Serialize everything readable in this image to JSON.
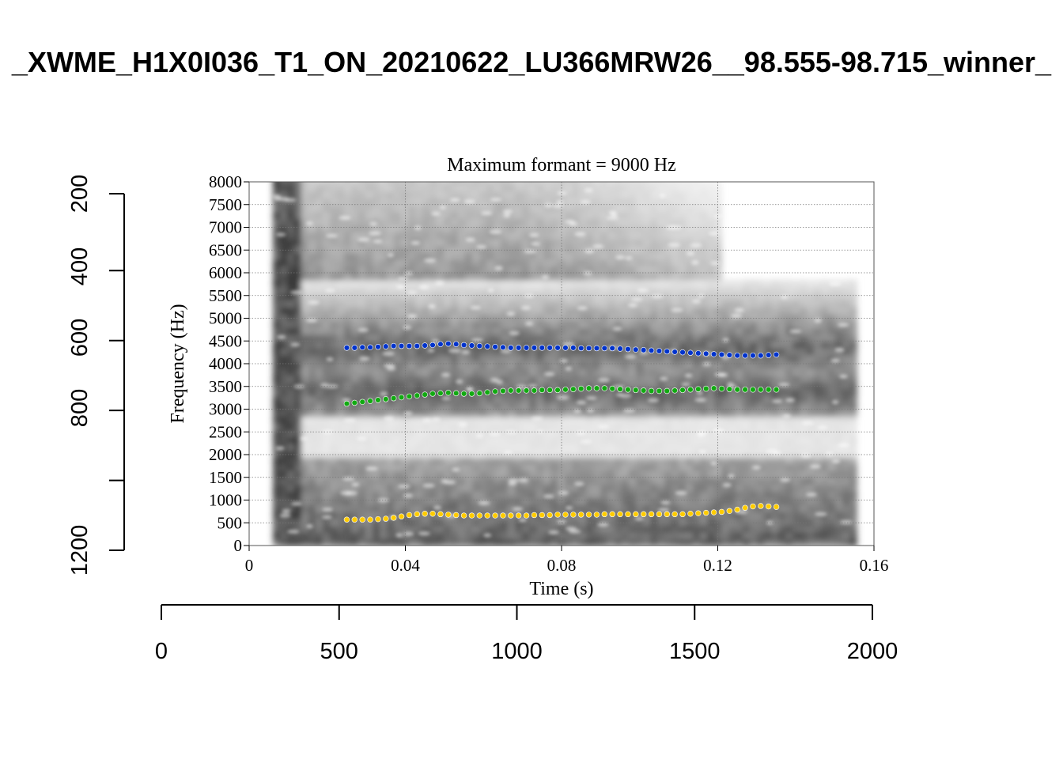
{
  "chart_data": {
    "type": "scatter",
    "title": "_XWME_H1X0I036_T1_ON_20210622_LU366MRW26__98.555-98.715_winner_",
    "outer_axes": {
      "x": {
        "ticks": [
          "0",
          "500",
          "1000",
          "1500",
          "2000"
        ],
        "range": [
          0,
          2000
        ]
      },
      "y": {
        "ticks": [
          "200",
          "400",
          "600",
          "800",
          "1200"
        ],
        "range": [
          180,
          1200
        ]
      }
    },
    "inset": {
      "type": "scatter",
      "title": "Maximum formant  =  9000 Hz",
      "xlabel": "Time (s)",
      "ylabel": "Frequency (Hz)",
      "xlim": [
        0,
        0.16
      ],
      "ylim": [
        0,
        8000
      ],
      "xticks": [
        "0",
        "0.04",
        "0.08",
        "0.12",
        "0.16"
      ],
      "yticks": [
        "0",
        "500",
        "1000",
        "1500",
        "2000",
        "2500",
        "3000",
        "3500",
        "4000",
        "4500",
        "5000",
        "5500",
        "6000",
        "6500",
        "7000",
        "7500",
        "8000"
      ],
      "grid": true,
      "background": "spectrogram (grayscale)",
      "x": [
        0.025,
        0.027,
        0.029,
        0.031,
        0.033,
        0.035,
        0.037,
        0.039,
        0.041,
        0.043,
        0.045,
        0.047,
        0.049,
        0.051,
        0.053,
        0.055,
        0.057,
        0.059,
        0.061,
        0.063,
        0.065,
        0.067,
        0.069,
        0.071,
        0.073,
        0.075,
        0.077,
        0.079,
        0.081,
        0.083,
        0.085,
        0.087,
        0.089,
        0.091,
        0.093,
        0.095,
        0.097,
        0.099,
        0.101,
        0.103,
        0.105,
        0.107,
        0.109,
        0.111,
        0.113,
        0.115,
        0.117,
        0.119,
        0.121,
        0.123,
        0.125,
        0.127,
        0.129,
        0.131,
        0.133,
        0.135
      ],
      "series": [
        {
          "color": "#0033cc",
          "values": [
            4350,
            4350,
            4360,
            4360,
            4370,
            4380,
            4390,
            4390,
            4390,
            4390,
            4400,
            4410,
            4430,
            4440,
            4430,
            4410,
            4400,
            4390,
            4380,
            4370,
            4360,
            4350,
            4350,
            4350,
            4350,
            4350,
            4350,
            4350,
            4350,
            4350,
            4340,
            4340,
            4340,
            4340,
            4340,
            4330,
            4320,
            4310,
            4300,
            4290,
            4280,
            4270,
            4260,
            4250,
            4240,
            4230,
            4220,
            4210,
            4200,
            4190,
            4180,
            4180,
            4180,
            4180,
            4190,
            4200
          ]
        },
        {
          "color": "#11aa11",
          "values": [
            3120,
            3140,
            3160,
            3180,
            3200,
            3220,
            3240,
            3260,
            3280,
            3300,
            3320,
            3340,
            3350,
            3360,
            3350,
            3340,
            3340,
            3350,
            3370,
            3390,
            3400,
            3410,
            3410,
            3410,
            3410,
            3420,
            3420,
            3420,
            3430,
            3440,
            3450,
            3460,
            3460,
            3460,
            3450,
            3440,
            3430,
            3420,
            3410,
            3400,
            3400,
            3400,
            3410,
            3420,
            3430,
            3440,
            3450,
            3460,
            3450,
            3440,
            3430,
            3430,
            3430,
            3430,
            3430,
            3430
          ]
        },
        {
          "color": "#ffcc00",
          "values": [
            570,
            570,
            570,
            570,
            580,
            590,
            610,
            640,
            670,
            690,
            700,
            700,
            690,
            680,
            670,
            660,
            660,
            660,
            660,
            660,
            660,
            660,
            660,
            660,
            670,
            670,
            670,
            680,
            680,
            680,
            680,
            680,
            680,
            690,
            690,
            690,
            690,
            690,
            690,
            690,
            690,
            690,
            690,
            690,
            700,
            710,
            720,
            730,
            740,
            760,
            790,
            830,
            860,
            870,
            860,
            850
          ]
        }
      ]
    }
  }
}
